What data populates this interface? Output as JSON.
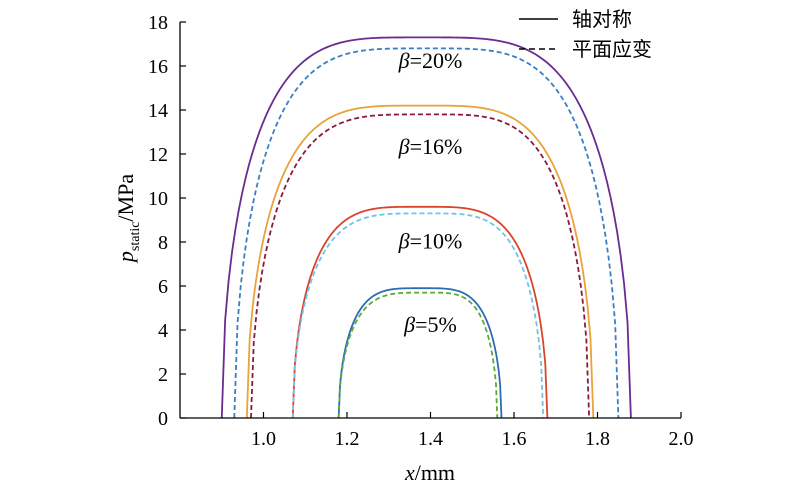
{
  "chart_data": {
    "type": "line",
    "xlabel": "x/mm",
    "ylabel": "p_static/MPa",
    "ylabel_main": "p",
    "ylabel_sub": "static",
    "ylabel_unit": "/MPa",
    "xlim": [
      0.8,
      2.0
    ],
    "ylim": [
      0,
      18
    ],
    "xticks": [
      "1.0",
      "1.2",
      "1.4",
      "1.6",
      "1.8",
      "2.0"
    ],
    "yticks": [
      "0",
      "2",
      "4",
      "6",
      "8",
      "10",
      "12",
      "14",
      "16",
      "18"
    ],
    "grid": false,
    "legend": {
      "placement": "top-right",
      "entries": [
        {
          "label": "轴对称",
          "style": "solid"
        },
        {
          "label": "平面应变",
          "style": "dashed"
        }
      ]
    },
    "annotations": [
      {
        "text": "β=20%",
        "x": 1.4,
        "y": 15.9
      },
      {
        "text": "β=16%",
        "x": 1.4,
        "y": 12.0
      },
      {
        "text": "β=10%",
        "x": 1.4,
        "y": 7.7
      },
      {
        "text": "β=5%",
        "x": 1.4,
        "y": 3.9
      }
    ],
    "series": [
      {
        "beta": "20%",
        "style": "solid",
        "color": "#6a2c91",
        "x0": 0.9,
        "x1": 1.88,
        "peak_x": 1.38,
        "peak": 17.3
      },
      {
        "beta": "20%",
        "style": "dashed",
        "color": "#3a7fc1",
        "x0": 0.93,
        "x1": 1.85,
        "peak_x": 1.39,
        "peak": 16.8
      },
      {
        "beta": "16%",
        "style": "solid",
        "color": "#e8a33a",
        "x0": 0.96,
        "x1": 1.79,
        "peak_x": 1.38,
        "peak": 14.2
      },
      {
        "beta": "16%",
        "style": "dashed",
        "color": "#8b1a3a",
        "x0": 0.97,
        "x1": 1.78,
        "peak_x": 1.39,
        "peak": 13.8
      },
      {
        "beta": "10%",
        "style": "solid",
        "color": "#d9452b",
        "x0": 1.07,
        "x1": 1.68,
        "peak_x": 1.38,
        "peak": 9.6
      },
      {
        "beta": "10%",
        "style": "dashed",
        "color": "#6ec3e6",
        "x0": 1.07,
        "x1": 1.67,
        "peak_x": 1.39,
        "peak": 9.3
      },
      {
        "beta": "5%",
        "style": "solid",
        "color": "#2b6db5",
        "x0": 1.18,
        "x1": 1.57,
        "peak_x": 1.38,
        "peak": 5.9
      },
      {
        "beta": "5%",
        "style": "dashed",
        "color": "#5ea83a",
        "x0": 1.18,
        "x1": 1.56,
        "peak_x": 1.39,
        "peak": 5.7
      }
    ]
  }
}
